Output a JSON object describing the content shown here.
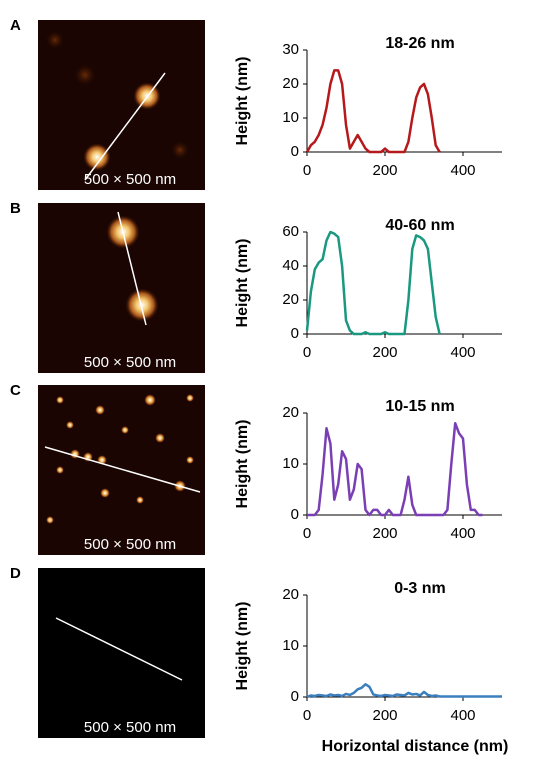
{
  "panels": [
    {
      "label": "A",
      "scale": "500 × 500 nm"
    },
    {
      "label": "B",
      "scale": "500 × 500 nm"
    },
    {
      "label": "C",
      "scale": "500 × 500 nm"
    },
    {
      "label": "D",
      "scale": "500 × 500 nm"
    }
  ],
  "chart_data": [
    {
      "type": "line",
      "title": "18-26 nm",
      "ylabel": "Height (nm)",
      "xlim": [
        0,
        500
      ],
      "xticks": [
        0,
        200,
        400
      ],
      "ylim": [
        0,
        30
      ],
      "yticks": [
        0,
        10,
        20,
        30
      ],
      "x": [
        0,
        10,
        20,
        30,
        40,
        50,
        60,
        70,
        80,
        90,
        100,
        110,
        120,
        130,
        140,
        150,
        160,
        170,
        180,
        190,
        200,
        210,
        220,
        230,
        240,
        250,
        260,
        270,
        280,
        290,
        300,
        310,
        320,
        330,
        340
      ],
      "series": [
        {
          "color": "#b5191c",
          "values": [
            0,
            2,
            3,
            5,
            8,
            13,
            20,
            24,
            24,
            20,
            8,
            1,
            3,
            5,
            3,
            1,
            0,
            0,
            0,
            0,
            1,
            0,
            0,
            0,
            0,
            0,
            3,
            10,
            16,
            19,
            20,
            17,
            10,
            2,
            0
          ]
        }
      ]
    },
    {
      "type": "line",
      "title": "40-60 nm",
      "ylabel": "Height (nm)",
      "xlim": [
        0,
        500
      ],
      "xticks": [
        0,
        200,
        400
      ],
      "ylim": [
        0,
        60
      ],
      "yticks": [
        0,
        20,
        40,
        60
      ],
      "x": [
        0,
        10,
        20,
        30,
        40,
        50,
        60,
        70,
        80,
        90,
        100,
        110,
        120,
        130,
        140,
        150,
        160,
        170,
        180,
        190,
        200,
        210,
        220,
        230,
        240,
        250,
        260,
        270,
        280,
        290,
        300,
        310,
        320,
        330,
        340
      ],
      "series": [
        {
          "color": "#1a9880",
          "values": [
            2,
            25,
            38,
            42,
            44,
            55,
            60,
            59,
            57,
            40,
            8,
            2,
            0,
            0,
            0,
            1,
            0,
            0,
            0,
            0,
            1,
            0,
            0,
            0,
            0,
            0,
            20,
            50,
            58,
            57,
            55,
            50,
            30,
            10,
            0
          ]
        }
      ]
    },
    {
      "type": "line",
      "title": "10-15 nm",
      "ylabel": "Height (nm)",
      "xlim": [
        0,
        500
      ],
      "xticks": [
        0,
        200,
        400
      ],
      "ylim": [
        0,
        20
      ],
      "yticks": [
        0,
        10,
        20
      ],
      "x": [
        0,
        10,
        20,
        30,
        40,
        50,
        60,
        70,
        80,
        90,
        100,
        110,
        120,
        130,
        140,
        150,
        160,
        170,
        180,
        190,
        200,
        210,
        220,
        230,
        240,
        250,
        260,
        270,
        280,
        290,
        300,
        310,
        320,
        330,
        340,
        350,
        360,
        370,
        380,
        390,
        400,
        410,
        420,
        430,
        440,
        450
      ],
      "series": [
        {
          "color": "#7b3fb5",
          "values": [
            0,
            0,
            0,
            1,
            8,
            17,
            14,
            3,
            6,
            12.5,
            11,
            3,
            5,
            10,
            9,
            1,
            0,
            1,
            1,
            0,
            0,
            1,
            0,
            0,
            0,
            3,
            7.5,
            2,
            0,
            0,
            0,
            0,
            0,
            0,
            0,
            0,
            1,
            10,
            18,
            16,
            15,
            6,
            1,
            1,
            0,
            0
          ]
        }
      ]
    },
    {
      "type": "line",
      "title": "0-3 nm",
      "ylabel": "Height (nm)",
      "xlabel": "Horizontal distance (nm)",
      "xlim": [
        0,
        500
      ],
      "xticks": [
        0,
        200,
        400
      ],
      "ylim": [
        0,
        20
      ],
      "yticks": [
        0,
        10,
        20
      ],
      "x": [
        0,
        10,
        20,
        30,
        40,
        50,
        60,
        70,
        80,
        90,
        100,
        110,
        120,
        130,
        140,
        150,
        160,
        170,
        180,
        190,
        200,
        210,
        220,
        230,
        240,
        250,
        260,
        270,
        280,
        290,
        300,
        310,
        320,
        330,
        340,
        350,
        360,
        370,
        380,
        390,
        400,
        410,
        420,
        430,
        440,
        450,
        460,
        470,
        480,
        490,
        500
      ],
      "series": [
        {
          "color": "#3b7fbf",
          "values": [
            0,
            0.3,
            0.2,
            0.4,
            0.3,
            0.2,
            0.5,
            0.3,
            0.4,
            0.2,
            0.6,
            0.4,
            0.8,
            1.5,
            1.8,
            2.5,
            2,
            0.5,
            0.3,
            0.2,
            0.4,
            0.3,
            0.2,
            0.5,
            0.4,
            0.3,
            0.8,
            0.5,
            0.6,
            0.3,
            1,
            0.4,
            0.2,
            0.3,
            0.1,
            0.1,
            0.1,
            0.1,
            0.1,
            0.1,
            0.1,
            0.1,
            0.1,
            0.1,
            0.1,
            0.1,
            0.1,
            0.1,
            0.1,
            0.1,
            0.1
          ]
        }
      ]
    }
  ]
}
